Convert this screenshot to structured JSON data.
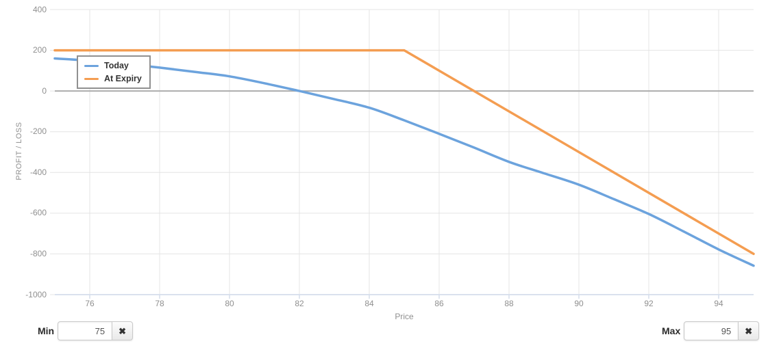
{
  "chart_data": {
    "type": "line",
    "title": "",
    "xlabel": "Price",
    "ylabel": "PROFIT / LOSS",
    "xlim": [
      75,
      95
    ],
    "ylim": [
      -1000,
      400
    ],
    "x_ticks": [
      76,
      78,
      80,
      82,
      84,
      86,
      88,
      90,
      92,
      94
    ],
    "y_ticks": [
      400,
      200,
      0,
      -200,
      -400,
      -600,
      -800,
      -1000
    ],
    "grid": true,
    "zero_line_at": 0,
    "legend_position": "top-left",
    "series": [
      {
        "name": "Today",
        "color": "#6CA3DD",
        "smooth": true,
        "x": [
          75,
          76,
          77,
          78,
          79,
          80,
          81,
          82,
          83,
          84,
          85,
          86,
          87,
          88,
          89,
          90,
          91,
          92,
          93,
          94,
          95
        ],
        "values": [
          160,
          149,
          134,
          115,
          94,
          72,
          38,
          0,
          -40,
          -82,
          -144,
          -210,
          -278,
          -348,
          -404,
          -460,
          -531,
          -604,
          -690,
          -778,
          -858
        ]
      },
      {
        "name": "At Expiry",
        "color": "#F49D51",
        "smooth": false,
        "x": [
          75,
          85,
          95
        ],
        "values": [
          200,
          200,
          -800
        ]
      }
    ]
  },
  "colors": {
    "grid": "#E4E4E4",
    "zero_line": "#ACACAC",
    "axis_line": "#D5DDEB",
    "tick_text": "#8F8F8F"
  },
  "controls": {
    "min": {
      "label": "Min",
      "value": "75",
      "clear_icon": "✖"
    },
    "max": {
      "label": "Max",
      "value": "95",
      "clear_icon": "✖"
    }
  }
}
